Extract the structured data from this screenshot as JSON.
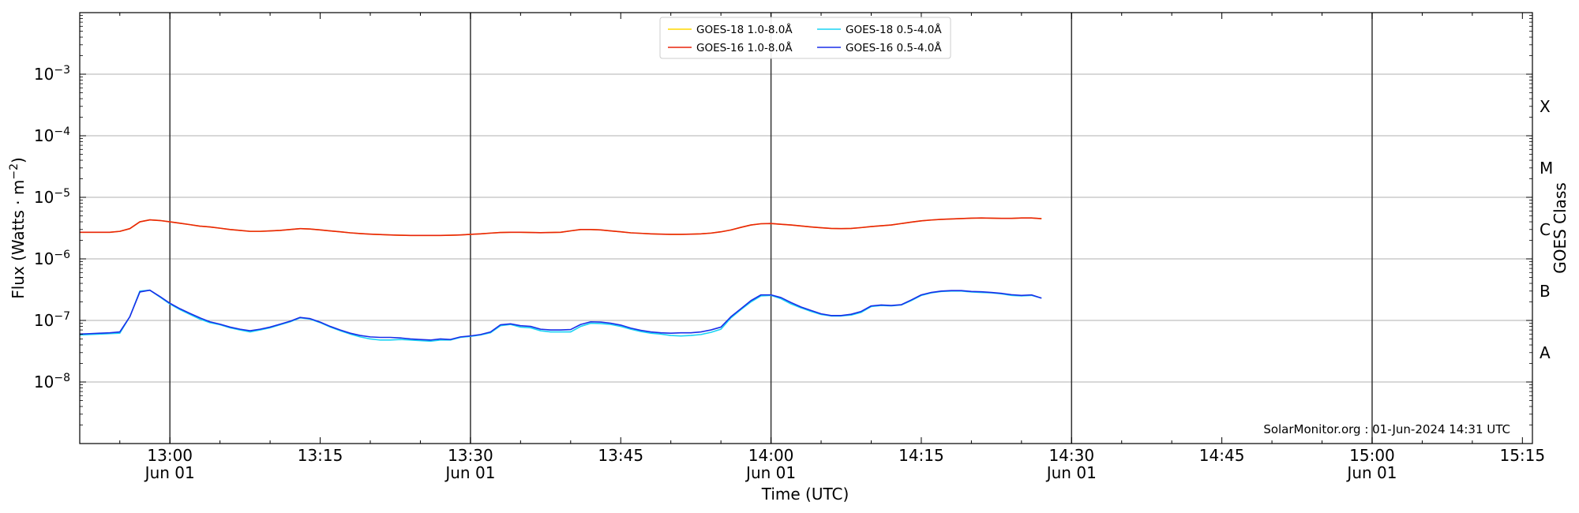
{
  "chart_data": {
    "type": "line",
    "title": "",
    "xlabel": "Time (UTC)",
    "ylabel": "Flux (Watts · m",
    "ylabel_sup": "−2",
    "ylabel_close": ")",
    "right_axis_label": "GOES Class",
    "x_range": [
      "12:51",
      "15:16"
    ],
    "y_scale": "log",
    "ylim": [
      1e-09,
      0.01
    ],
    "y_ticks": [
      {
        "value": 1e-08,
        "base": "10",
        "exp": "−8"
      },
      {
        "value": 1e-07,
        "base": "10",
        "exp": "−7"
      },
      {
        "value": 1e-06,
        "base": "10",
        "exp": "−6"
      },
      {
        "value": 1e-05,
        "base": "10",
        "exp": "−5"
      },
      {
        "value": 0.0001,
        "base": "10",
        "exp": "−4"
      },
      {
        "value": 0.001,
        "base": "10",
        "exp": "−3"
      }
    ],
    "x_ticks": [
      {
        "time": "13:00",
        "label": "13:00",
        "sub": "Jun 01"
      },
      {
        "time": "13:15",
        "label": "13:15",
        "sub": ""
      },
      {
        "time": "13:30",
        "label": "13:30",
        "sub": "Jun 01"
      },
      {
        "time": "13:45",
        "label": "13:45",
        "sub": ""
      },
      {
        "time": "14:00",
        "label": "14:00",
        "sub": "Jun 01"
      },
      {
        "time": "14:15",
        "label": "14:15",
        "sub": ""
      },
      {
        "time": "14:30",
        "label": "14:30",
        "sub": "Jun 01"
      },
      {
        "time": "14:45",
        "label": "14:45",
        "sub": ""
      },
      {
        "time": "15:00",
        "label": "15:00",
        "sub": "Jun 01"
      },
      {
        "time": "15:15",
        "label": "15:15",
        "sub": ""
      }
    ],
    "vertical_lines": [
      "13:00",
      "13:30",
      "14:00",
      "14:30",
      "15:00"
    ],
    "goes_classes": [
      {
        "label": "A",
        "flux": 3e-08
      },
      {
        "label": "B",
        "flux": 3e-07
      },
      {
        "label": "C",
        "flux": 3e-06
      },
      {
        "label": "M",
        "flux": 3e-05
      },
      {
        "label": "X",
        "flux": 0.0003
      }
    ],
    "grid": true,
    "legend_position": "top-center",
    "watermark": "SolarMonitor.org : 01-Jun-2024 14:31 UTC",
    "x": [
      "12:51",
      "12:52",
      "12:53",
      "12:54",
      "12:55",
      "12:56",
      "12:57",
      "12:58",
      "12:59",
      "13:00",
      "13:01",
      "13:02",
      "13:03",
      "13:04",
      "13:05",
      "13:06",
      "13:07",
      "13:08",
      "13:09",
      "13:10",
      "13:11",
      "13:12",
      "13:13",
      "13:14",
      "13:15",
      "13:16",
      "13:17",
      "13:18",
      "13:19",
      "13:20",
      "13:21",
      "13:22",
      "13:23",
      "13:24",
      "13:25",
      "13:26",
      "13:27",
      "13:28",
      "13:29",
      "13:30",
      "13:31",
      "13:32",
      "13:33",
      "13:34",
      "13:35",
      "13:36",
      "13:37",
      "13:38",
      "13:39",
      "13:40",
      "13:41",
      "13:42",
      "13:43",
      "13:44",
      "13:45",
      "13:46",
      "13:47",
      "13:48",
      "13:49",
      "13:50",
      "13:51",
      "13:52",
      "13:53",
      "13:54",
      "13:55",
      "13:56",
      "13:57",
      "13:58",
      "13:59",
      "14:00",
      "14:01",
      "14:02",
      "14:03",
      "14:04",
      "14:05",
      "14:06",
      "14:07",
      "14:08",
      "14:09",
      "14:10",
      "14:11",
      "14:12",
      "14:13",
      "14:14",
      "14:15",
      "14:16",
      "14:17",
      "14:18",
      "14:19",
      "14:20",
      "14:21",
      "14:22",
      "14:23",
      "14:24",
      "14:25",
      "14:26",
      "14:27"
    ],
    "series": [
      {
        "name": "GOES-18 1.0-8.0Å",
        "color": "#ffd700",
        "width": 1.6,
        "values": [
          2.7e-06,
          2.7e-06,
          2.7e-06,
          2.7e-06,
          2.8e-06,
          3.1e-06,
          4e-06,
          4.3e-06,
          4.2e-06,
          4e-06,
          3.8e-06,
          3.6e-06,
          3.4e-06,
          3.3e-06,
          3.15e-06,
          3e-06,
          2.9e-06,
          2.8e-06,
          2.8e-06,
          2.85e-06,
          2.9e-06,
          3e-06,
          3.1e-06,
          3.05e-06,
          2.95e-06,
          2.85e-06,
          2.75e-06,
          2.65e-06,
          2.58e-06,
          2.52e-06,
          2.48e-06,
          2.45e-06,
          2.42e-06,
          2.4e-06,
          2.4e-06,
          2.4e-06,
          2.4e-06,
          2.42e-06,
          2.45e-06,
          2.5e-06,
          2.55e-06,
          2.62e-06,
          2.68e-06,
          2.7e-06,
          2.7e-06,
          2.68e-06,
          2.66e-06,
          2.68e-06,
          2.7e-06,
          2.85e-06,
          3e-06,
          3e-06,
          2.95e-06,
          2.85e-06,
          2.75e-06,
          2.65e-06,
          2.6e-06,
          2.55e-06,
          2.52e-06,
          2.5e-06,
          2.5e-06,
          2.52e-06,
          2.55e-06,
          2.62e-06,
          2.75e-06,
          2.95e-06,
          3.25e-06,
          3.55e-06,
          3.72e-06,
          3.75e-06,
          3.65e-06,
          3.55e-06,
          3.42e-06,
          3.3e-06,
          3.2e-06,
          3.12e-06,
          3.1e-06,
          3.12e-06,
          3.22e-06,
          3.35e-06,
          3.45e-06,
          3.55e-06,
          3.75e-06,
          3.95e-06,
          4.15e-06,
          4.28e-06,
          4.38e-06,
          4.45e-06,
          4.52e-06,
          4.58e-06,
          4.62e-06,
          4.58e-06,
          4.55e-06,
          4.55e-06,
          4.62e-06,
          4.62e-06,
          4.5e-06
        ]
      },
      {
        "name": "GOES-16 1.0-8.0Å",
        "color": "#e8240c",
        "width": 1.6,
        "values": [
          2.7e-06,
          2.7e-06,
          2.7e-06,
          2.7e-06,
          2.8e-06,
          3.1e-06,
          4e-06,
          4.3e-06,
          4.2e-06,
          4e-06,
          3.8e-06,
          3.6e-06,
          3.4e-06,
          3.3e-06,
          3.15e-06,
          3e-06,
          2.9e-06,
          2.8e-06,
          2.8e-06,
          2.85e-06,
          2.9e-06,
          3e-06,
          3.1e-06,
          3.05e-06,
          2.95e-06,
          2.85e-06,
          2.75e-06,
          2.65e-06,
          2.58e-06,
          2.52e-06,
          2.48e-06,
          2.45e-06,
          2.42e-06,
          2.4e-06,
          2.4e-06,
          2.4e-06,
          2.4e-06,
          2.42e-06,
          2.45e-06,
          2.5e-06,
          2.55e-06,
          2.62e-06,
          2.68e-06,
          2.7e-06,
          2.7e-06,
          2.68e-06,
          2.66e-06,
          2.68e-06,
          2.7e-06,
          2.85e-06,
          3e-06,
          3e-06,
          2.95e-06,
          2.85e-06,
          2.75e-06,
          2.65e-06,
          2.6e-06,
          2.55e-06,
          2.52e-06,
          2.5e-06,
          2.5e-06,
          2.52e-06,
          2.55e-06,
          2.62e-06,
          2.75e-06,
          2.95e-06,
          3.25e-06,
          3.55e-06,
          3.72e-06,
          3.75e-06,
          3.65e-06,
          3.55e-06,
          3.42e-06,
          3.3e-06,
          3.2e-06,
          3.12e-06,
          3.1e-06,
          3.12e-06,
          3.22e-06,
          3.35e-06,
          3.45e-06,
          3.55e-06,
          3.75e-06,
          3.95e-06,
          4.15e-06,
          4.28e-06,
          4.38e-06,
          4.45e-06,
          4.52e-06,
          4.58e-06,
          4.62e-06,
          4.58e-06,
          4.55e-06,
          4.55e-06,
          4.62e-06,
          4.62e-06,
          4.5e-06
        ]
      },
      {
        "name": "GOES-18 0.5-4.0Å",
        "color": "#19d3f3",
        "width": 1.6,
        "values": [
          5.8e-08,
          5.9e-08,
          6e-08,
          6.1e-08,
          6.2e-08,
          1.15e-07,
          3e-07,
          3.1e-07,
          2.4e-07,
          1.85e-07,
          1.5e-07,
          1.25e-07,
          1.05e-07,
          9.2e-08,
          8.5e-08,
          7.6e-08,
          7e-08,
          6.5e-08,
          7e-08,
          7.6e-08,
          8.5e-08,
          9.5e-08,
          1.1e-07,
          1.05e-07,
          9.2e-08,
          7.8e-08,
          6.8e-08,
          6e-08,
          5.4e-08,
          5e-08,
          4.8e-08,
          4.8e-08,
          4.9e-08,
          4.8e-08,
          4.7e-08,
          4.6e-08,
          4.8e-08,
          4.8e-08,
          5.3e-08,
          5.5e-08,
          5.8e-08,
          6.3e-08,
          8.2e-08,
          8.6e-08,
          7.8e-08,
          7.6e-08,
          6.8e-08,
          6.5e-08,
          6.5e-08,
          6.5e-08,
          8e-08,
          9e-08,
          8.9e-08,
          8.6e-08,
          8e-08,
          7.2e-08,
          6.6e-08,
          6.2e-08,
          6e-08,
          5.7e-08,
          5.6e-08,
          5.7e-08,
          5.9e-08,
          6.4e-08,
          7.2e-08,
          1.1e-07,
          1.5e-07,
          2e-07,
          2.5e-07,
          2.55e-07,
          2.25e-07,
          1.85e-07,
          1.6e-07,
          1.4e-07,
          1.25e-07,
          1.18e-07,
          1.18e-07,
          1.22e-07,
          1.35e-07,
          1.68e-07,
          1.75e-07,
          1.72e-07,
          1.78e-07,
          2.1e-07,
          2.55e-07,
          2.8e-07,
          2.95e-07,
          3e-07,
          3e-07,
          2.9e-07,
          2.85e-07,
          2.8e-07,
          2.7e-07,
          2.55e-07,
          2.5e-07,
          2.55e-07,
          2.3e-07
        ]
      },
      {
        "name": "GOES-16 0.5-4.0Å",
        "color": "#1a2ee8",
        "width": 1.6,
        "values": [
          6e-08,
          6.1e-08,
          6.2e-08,
          6.3e-08,
          6.5e-08,
          1.15e-07,
          2.9e-07,
          3.1e-07,
          2.45e-07,
          1.9e-07,
          1.55e-07,
          1.3e-07,
          1.1e-07,
          9.5e-08,
          8.7e-08,
          7.8e-08,
          7.2e-08,
          6.8e-08,
          7.2e-08,
          7.8e-08,
          8.7e-08,
          9.7e-08,
          1.12e-07,
          1.07e-07,
          9.4e-08,
          8e-08,
          7e-08,
          6.2e-08,
          5.7e-08,
          5.4e-08,
          5.3e-08,
          5.3e-08,
          5.2e-08,
          5e-08,
          4.9e-08,
          4.8e-08,
          5e-08,
          4.9e-08,
          5.4e-08,
          5.6e-08,
          5.9e-08,
          6.5e-08,
          8.5e-08,
          8.8e-08,
          8.2e-08,
          8e-08,
          7.2e-08,
          7e-08,
          7e-08,
          7.1e-08,
          8.6e-08,
          9.5e-08,
          9.4e-08,
          9e-08,
          8.4e-08,
          7.5e-08,
          6.9e-08,
          6.5e-08,
          6.3e-08,
          6.2e-08,
          6.3e-08,
          6.3e-08,
          6.5e-08,
          7e-08,
          7.8e-08,
          1.15e-07,
          1.55e-07,
          2.1e-07,
          2.6e-07,
          2.6e-07,
          2.35e-07,
          1.95e-07,
          1.65e-07,
          1.45e-07,
          1.28e-07,
          1.2e-07,
          1.2e-07,
          1.26e-07,
          1.4e-07,
          1.72e-07,
          1.78e-07,
          1.75e-07,
          1.8e-07,
          2.15e-07,
          2.6e-07,
          2.85e-07,
          3e-07,
          3.05e-07,
          3.05e-07,
          2.95e-07,
          2.92e-07,
          2.85e-07,
          2.75e-07,
          2.62e-07,
          2.55e-07,
          2.6e-07,
          2.3e-07
        ]
      }
    ]
  }
}
